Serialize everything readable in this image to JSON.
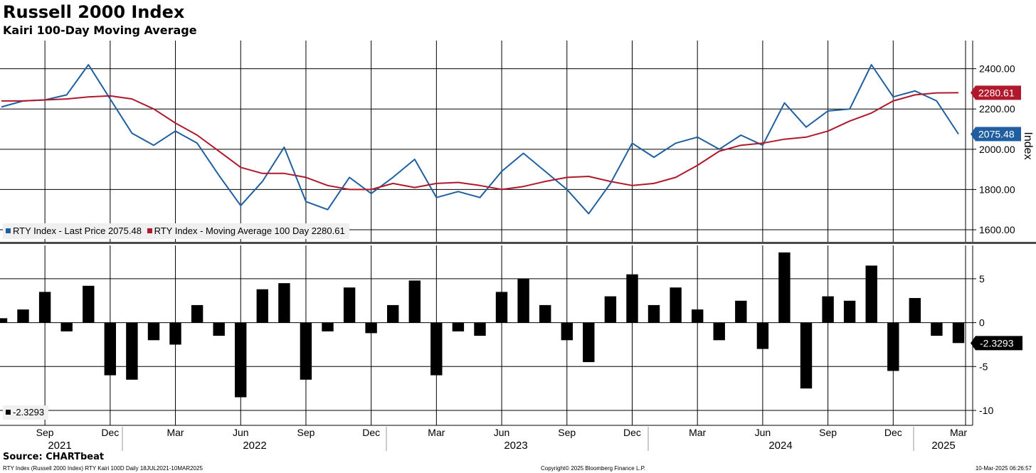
{
  "header": {
    "title": "Russell 2000 Index",
    "subtitle": "Kairi 100-Day Moving Average"
  },
  "footer": {
    "source": "Source: CHARTbeat",
    "left": "RTY Index (Russell 2000 Index) RTY Kairi 100D  Daily 18JUL2021-10MAR2025",
    "center": "Copyright© 2025 Bloomberg Finance L.P.",
    "right": "10-Mar-2025 06:26:57"
  },
  "colors": {
    "price": "#1f5f9f",
    "ma": "#b0182b",
    "kairi": "#000000",
    "grid": "#000000"
  },
  "chart_data": [
    {
      "type": "line",
      "ylabel": "Index",
      "ylim": [
        1540,
        2540
      ],
      "yticks": [
        "1600.00",
        "1800.00",
        "2000.00",
        "2200.00",
        "2400.00"
      ],
      "grid": true,
      "legend_position": "bottom-left",
      "x_ticks": {
        "months": [
          "Sep",
          "Dec",
          "Mar",
          "Jun",
          "Sep",
          "Dec",
          "Mar",
          "Jun",
          "Sep",
          "Dec",
          "Mar",
          "Jun",
          "Sep",
          "Dec",
          "Mar"
        ],
        "years": [
          "2021",
          "2022",
          "2023",
          "2024",
          "2025"
        ]
      },
      "x": [
        "2021-07",
        "2021-08",
        "2021-09",
        "2021-10",
        "2021-11",
        "2021-12",
        "2022-01",
        "2022-02",
        "2022-03",
        "2022-04",
        "2022-05",
        "2022-06",
        "2022-07",
        "2022-08",
        "2022-09",
        "2022-10",
        "2022-11",
        "2022-12",
        "2023-01",
        "2023-02",
        "2023-03",
        "2023-04",
        "2023-05",
        "2023-06",
        "2023-07",
        "2023-08",
        "2023-09",
        "2023-10",
        "2023-11",
        "2023-12",
        "2024-01",
        "2024-02",
        "2024-03",
        "2024-04",
        "2024-05",
        "2024-06",
        "2024-07",
        "2024-08",
        "2024-09",
        "2024-10",
        "2024-11",
        "2024-12",
        "2025-01",
        "2025-02",
        "2025-03"
      ],
      "series": [
        {
          "name": "RTY Index - Last Price",
          "last_value": "2075.48",
          "values": [
            2210,
            2240,
            2245,
            2270,
            2420,
            2250,
            2080,
            2020,
            2090,
            2030,
            1870,
            1720,
            1840,
            2010,
            1740,
            1700,
            1860,
            1780,
            1860,
            1950,
            1760,
            1790,
            1760,
            1890,
            1980,
            1890,
            1800,
            1680,
            1830,
            2030,
            1960,
            2030,
            2060,
            2000,
            2070,
            2020,
            2230,
            2110,
            2190,
            2200,
            2420,
            2260,
            2290,
            2240,
            2075.48
          ]
        },
        {
          "name": "RTY Index - Moving Average 100 Day",
          "last_value": "2280.61",
          "values": [
            2240,
            2240,
            2245,
            2250,
            2260,
            2265,
            2250,
            2200,
            2130,
            2070,
            1990,
            1910,
            1880,
            1880,
            1860,
            1820,
            1800,
            1800,
            1830,
            1810,
            1830,
            1835,
            1820,
            1800,
            1815,
            1840,
            1860,
            1865,
            1840,
            1820,
            1830,
            1860,
            1920,
            1990,
            2020,
            2030,
            2050,
            2060,
            2090,
            2140,
            2180,
            2240,
            2270,
            2280,
            2280.61
          ]
        }
      ]
    },
    {
      "type": "bar",
      "ylim": [
        -11.7,
        8.8
      ],
      "yticks": [
        "5",
        "0",
        "-5",
        "-10"
      ],
      "grid": true,
      "series": [
        {
          "name": "RTY Kairi 100D",
          "last_value": "-2.3293",
          "x": [
            "2021-07",
            "2021-08",
            "2021-09",
            "2021-10",
            "2021-11",
            "2021-12",
            "2022-01",
            "2022-02",
            "2022-03",
            "2022-04",
            "2022-05",
            "2022-06",
            "2022-07",
            "2022-08",
            "2022-09",
            "2022-10",
            "2022-11",
            "2022-12",
            "2023-01",
            "2023-02",
            "2023-03",
            "2023-04",
            "2023-05",
            "2023-06",
            "2023-07",
            "2023-08",
            "2023-09",
            "2023-10",
            "2023-11",
            "2023-12",
            "2024-01",
            "2024-02",
            "2024-03",
            "2024-04",
            "2024-05",
            "2024-06",
            "2024-07",
            "2024-08",
            "2024-09",
            "2024-10",
            "2024-11",
            "2024-12",
            "2025-01",
            "2025-02",
            "2025-03"
          ],
          "values": [
            0.5,
            1.5,
            3.5,
            -1,
            4.2,
            -6,
            -6.5,
            -2,
            -2.5,
            2,
            -1.5,
            -8.5,
            3.8,
            4.5,
            -6.5,
            -1,
            4,
            -1.2,
            2,
            4.8,
            -6,
            -1,
            -1.5,
            3.5,
            5,
            2,
            -2,
            -4.5,
            3,
            5.5,
            2,
            4,
            1.5,
            -2,
            2.5,
            -3,
            8,
            -7.5,
            3,
            2.5,
            6.5,
            -5.5,
            2.8,
            -1.5,
            -2.3293
          ]
        }
      ]
    }
  ]
}
